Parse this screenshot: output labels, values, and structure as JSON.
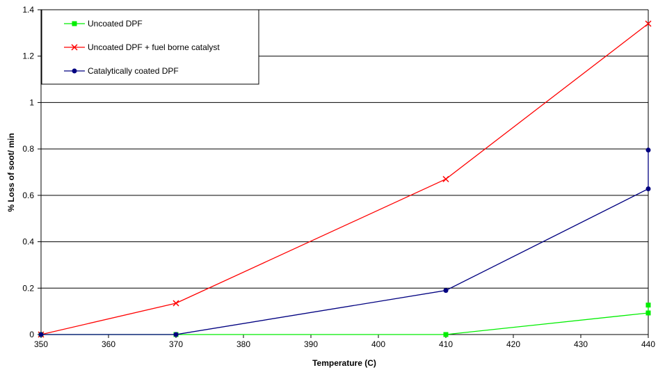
{
  "chart_data": {
    "type": "line",
    "xlabel": "Temperature (C)",
    "ylabel": "% Loss of soot/ min",
    "xlim": [
      350,
      440
    ],
    "ylim": [
      0,
      1.4
    ],
    "x_ticks": [
      "350",
      "360",
      "370",
      "380",
      "390",
      "400",
      "410",
      "420",
      "430",
      "440"
    ],
    "y_ticks": [
      "0",
      "0.2",
      "0.4",
      "0.6",
      "0.8",
      "1",
      "1.2",
      "1.4"
    ],
    "grid": "horizontal",
    "legend_position": "top-left",
    "series": [
      {
        "name": "Uncoated DPF",
        "color": "#00ee00",
        "marker": "square",
        "points": [
          [
            350,
            0
          ],
          [
            370,
            0
          ],
          [
            410,
            0
          ],
          [
            440,
            0.093
          ],
          [
            440,
            0.127
          ]
        ]
      },
      {
        "name": "Uncoated DPF + fuel borne catalyst",
        "color": "#ff0000",
        "marker": "x",
        "points": [
          [
            350,
            0
          ],
          [
            370,
            0.135
          ],
          [
            410,
            0.67
          ],
          [
            440,
            1.34
          ]
        ]
      },
      {
        "name": "Catalytically coated DPF",
        "color": "#000080",
        "marker": "circle",
        "points": [
          [
            350,
            0
          ],
          [
            370,
            0
          ],
          [
            410,
            0.19
          ],
          [
            440,
            0.628
          ],
          [
            440,
            0.795
          ]
        ]
      }
    ]
  }
}
